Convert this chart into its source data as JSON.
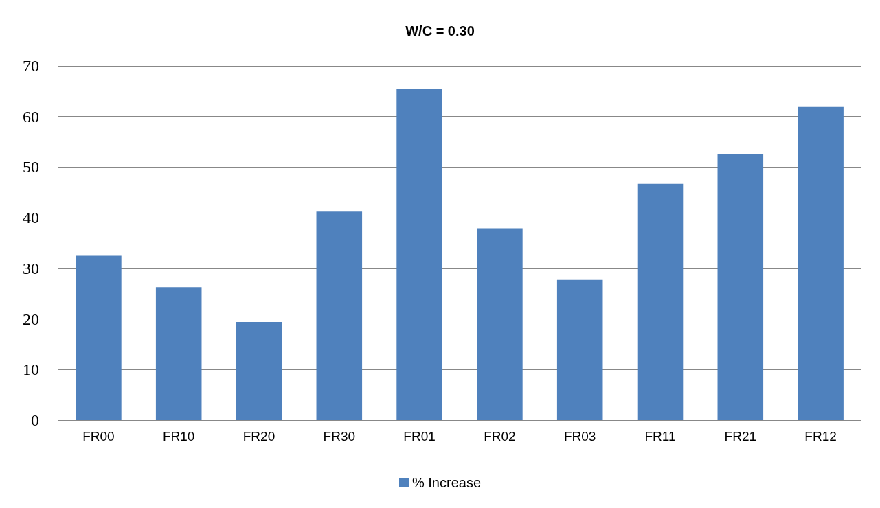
{
  "chart_data": {
    "type": "bar",
    "title": "W/C = 0.30",
    "categories": [
      "FR00",
      "FR10",
      "FR20",
      "FR30",
      "FR01",
      "FR02",
      "FR03",
      "FR11",
      "FR21",
      "FR12"
    ],
    "series": [
      {
        "name": "% Increase",
        "color": "#4f81bd",
        "values": [
          32.5,
          26.3,
          19.4,
          41.2,
          65.5,
          37.9,
          27.7,
          46.7,
          52.6,
          61.9
        ]
      }
    ],
    "ylim": [
      0,
      70
    ],
    "yticks": [
      0,
      10,
      20,
      30,
      40,
      50,
      60,
      70
    ],
    "grid": "y",
    "legend": "bottom"
  }
}
